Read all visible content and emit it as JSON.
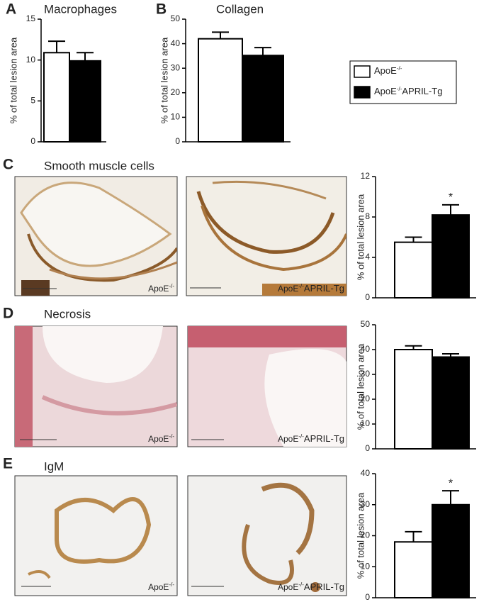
{
  "chart_data": [
    {
      "type": "bar",
      "panel": "A",
      "title": "Macrophages",
      "ylabel": "% of total lesion area",
      "values": [
        10.9,
        9.9
      ],
      "errors": [
        1.4,
        1.0
      ],
      "colors": [
        "#ffffff",
        "#000000"
      ],
      "ylim": [
        0,
        15
      ],
      "yticks": [
        0,
        5,
        10,
        15
      ]
    },
    {
      "type": "bar",
      "panel": "B",
      "title": "Collagen",
      "ylabel": "% of total lesion area",
      "values": [
        42,
        35.2
      ],
      "errors": [
        2.7,
        3.2
      ],
      "colors": [
        "#ffffff",
        "#000000"
      ],
      "ylim": [
        0,
        50
      ],
      "yticks": [
        0,
        10,
        20,
        30,
        40,
        50
      ]
    },
    {
      "type": "bar",
      "panel": "C",
      "title": "Smooth muscle cells",
      "ylabel": "% of total lesion area",
      "values": [
        5.5,
        8.2
      ],
      "errors": [
        0.5,
        1.0
      ],
      "colors": [
        "#ffffff",
        "#000000"
      ],
      "significance": [
        null,
        "*"
      ],
      "ylim": [
        0,
        12
      ],
      "yticks": [
        0,
        4,
        8,
        12
      ]
    },
    {
      "type": "bar",
      "panel": "D",
      "title": "Necrosis",
      "ylabel": "% of total lesion area",
      "values": [
        40,
        37
      ],
      "errors": [
        1.5,
        1.3
      ],
      "colors": [
        "#ffffff",
        "#000000"
      ],
      "ylim": [
        0,
        50
      ],
      "yticks": [
        0,
        10,
        20,
        30,
        40,
        50
      ]
    },
    {
      "type": "bar",
      "panel": "E",
      "title": "IgM",
      "ylabel": "% of total lesion area",
      "values": [
        18,
        30
      ],
      "errors": [
        3.3,
        4.5
      ],
      "colors": [
        "#ffffff",
        "#000000"
      ],
      "significance": [
        null,
        "*"
      ],
      "ylim": [
        0,
        40
      ],
      "yticks": [
        0,
        10,
        20,
        30,
        40
      ]
    }
  ],
  "legend": [
    {
      "name": "ApoE-/-",
      "color": "#ffffff"
    },
    {
      "name": "ApoE-/-APRIL-Tg",
      "color": "#000000"
    }
  ],
  "micrographs": [
    {
      "labels": [
        "ApoE-/-",
        "ApoE-/-APRIL-Tg"
      ]
    },
    {
      "labels": [
        "ApoE-/-",
        "ApoE-/-APRIL-Tg"
      ]
    },
    {
      "labels": [
        "ApoE-/-",
        "ApoE-/-APRIL-Tg"
      ]
    }
  ]
}
